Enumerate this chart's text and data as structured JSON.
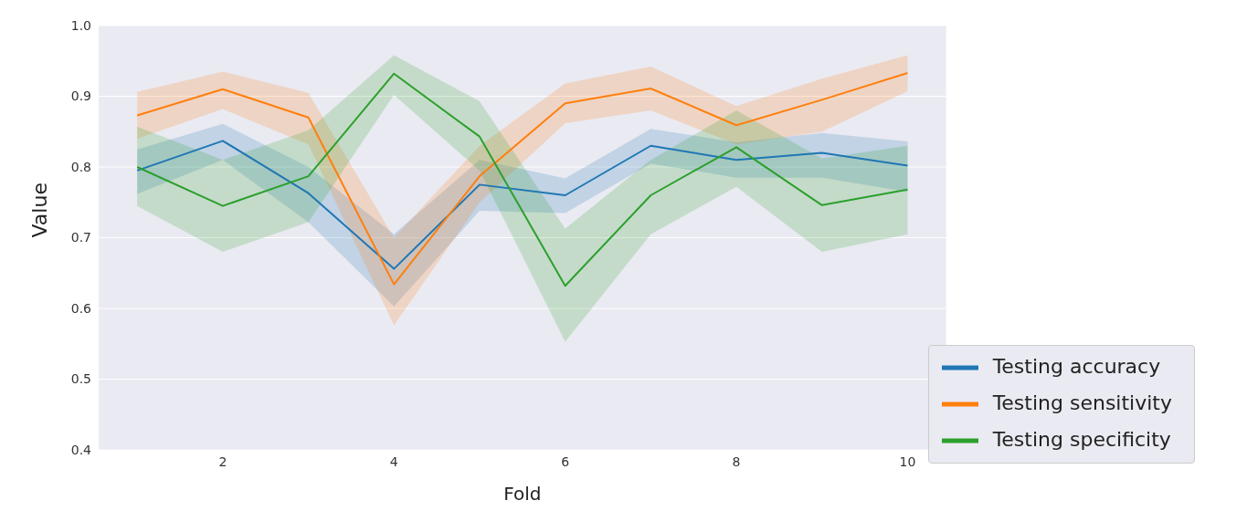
{
  "chart_data": {
    "type": "line",
    "xlabel": "Fold",
    "ylabel": "Value",
    "x": [
      1,
      2,
      3,
      4,
      5,
      6,
      7,
      8,
      9,
      10
    ],
    "series": [
      {
        "name": "Testing accuracy",
        "color": "#1f77b4",
        "values": [
          0.795,
          0.837,
          0.763,
          0.656,
          0.775,
          0.76,
          0.83,
          0.81,
          0.82,
          0.802
        ],
        "lower": [
          0.762,
          0.81,
          0.722,
          0.603,
          0.738,
          0.735,
          0.805,
          0.785,
          0.785,
          0.765
        ],
        "upper": [
          0.825,
          0.861,
          0.8,
          0.705,
          0.81,
          0.784,
          0.854,
          0.835,
          0.848,
          0.836
        ]
      },
      {
        "name": "Testing sensitivity",
        "color": "#ff7f0e",
        "values": [
          0.873,
          0.91,
          0.87,
          0.634,
          0.787,
          0.89,
          0.911,
          0.859,
          0.895,
          0.933
        ],
        "lower": [
          0.84,
          0.882,
          0.832,
          0.576,
          0.75,
          0.862,
          0.88,
          0.832,
          0.85,
          0.907
        ],
        "upper": [
          0.906,
          0.935,
          0.905,
          0.7,
          0.83,
          0.918,
          0.942,
          0.886,
          0.925,
          0.958
        ]
      },
      {
        "name": "Testing specificity",
        "color": "#2ca02c",
        "values": [
          0.8,
          0.745,
          0.787,
          0.932,
          0.843,
          0.632,
          0.76,
          0.828,
          0.746,
          0.768
        ],
        "lower": [
          0.745,
          0.68,
          0.722,
          0.902,
          0.795,
          0.553,
          0.705,
          0.772,
          0.68,
          0.705
        ],
        "upper": [
          0.857,
          0.81,
          0.852,
          0.958,
          0.893,
          0.713,
          0.81,
          0.88,
          0.812,
          0.83
        ]
      }
    ],
    "xlim": [
      0.55,
      10.45
    ],
    "xticks": [
      2,
      4,
      6,
      8,
      10
    ],
    "ylim": [
      0.4,
      1.0
    ],
    "yticks": [
      {
        "value": 0.4,
        "label": "0.4"
      },
      {
        "value": 0.5,
        "label": "0.5"
      },
      {
        "value": 0.6,
        "label": "0.6"
      },
      {
        "value": 0.7,
        "label": "0.7"
      },
      {
        "value": 0.8,
        "label": "0.8"
      },
      {
        "value": 0.9,
        "label": "0.9"
      },
      {
        "value": 1.0,
        "label": "1.0"
      }
    ],
    "grid": "y",
    "legend": "bottom right",
    "marker": "none",
    "line_style": "solid"
  }
}
